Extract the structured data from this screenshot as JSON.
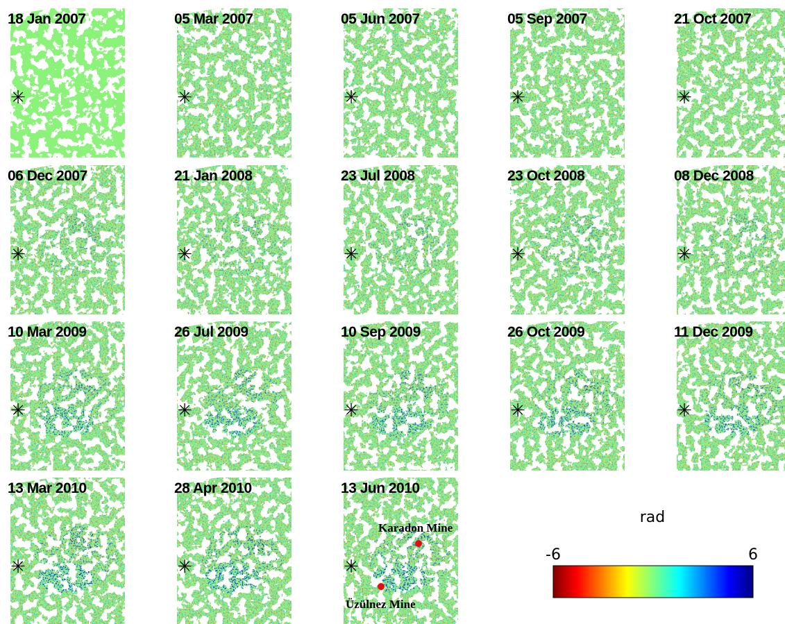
{
  "panels": [
    {
      "date": "18 Jan 2007"
    },
    {
      "date": "05 Mar 2007"
    },
    {
      "date": "05 Jun 2007"
    },
    {
      "date": "05 Sep 2007"
    },
    {
      "date": "21 Oct 2007"
    },
    {
      "date": "06 Dec 2007"
    },
    {
      "date": "21 Jan 2008"
    },
    {
      "date": "23 Jul 2008"
    },
    {
      "date": "23 Oct 2008"
    },
    {
      "date": "08 Dec 2008"
    },
    {
      "date": "10 Mar 2009"
    },
    {
      "date": "26 Jul 2009"
    },
    {
      "date": "10 Sep 2009"
    },
    {
      "date": "26 Oct 2009"
    },
    {
      "date": "11 Dec 2009"
    },
    {
      "date": "13 Mar 2010"
    },
    {
      "date": "28 Apr 2010"
    },
    {
      "date": "13 Jun 2010"
    }
  ],
  "annotations": {
    "karadon": "Karadon Mine",
    "uzulnez": "Üzülnez Mine"
  },
  "colorbar": {
    "title": "rad",
    "min_label": "-6",
    "max_label": "6"
  }
}
